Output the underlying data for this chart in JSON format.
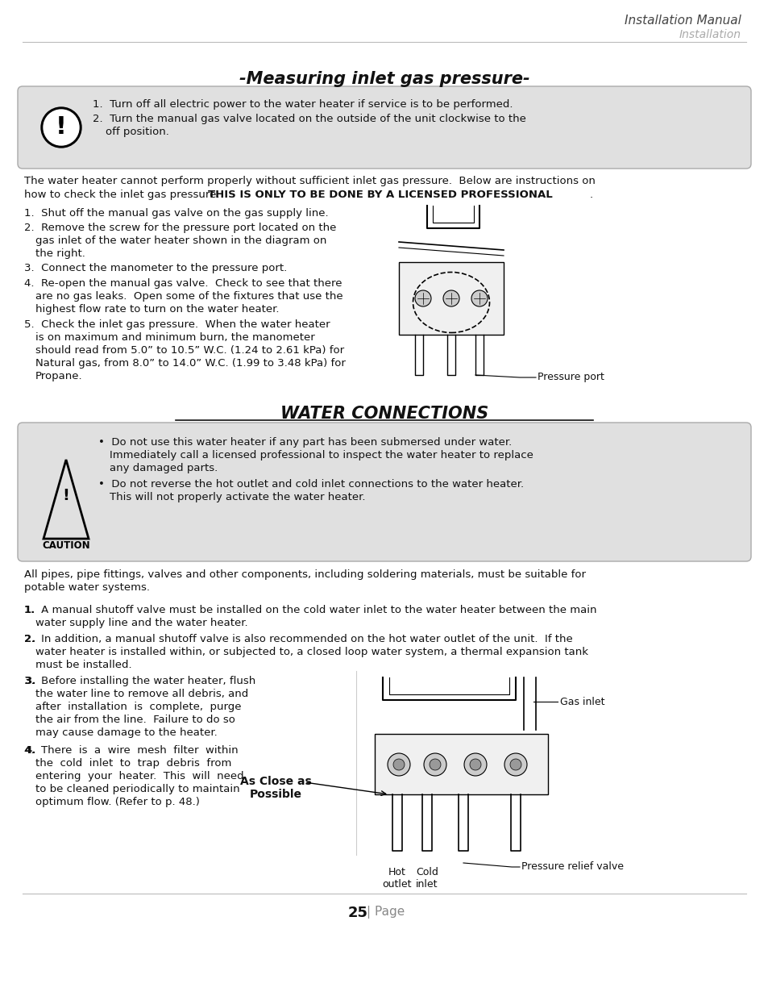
{
  "page_bg": "#ffffff",
  "header_title": "Installation Manual",
  "header_subtitle": "Installation",
  "section1_title": "-Measuring inlet gas pressure-",
  "warning_box_bg": "#e0e0e0",
  "caution_box_bg": "#e0e0e0",
  "section2_title": "WATER CONNECTIONS",
  "page_number": "25",
  "page_label": "Page",
  "text_color": "#111111",
  "header_color": "#444444",
  "subheader_color": "#aaaaaa",
  "rule_color": "#bbbbbb",
  "box_edge_color": "#aaaaaa",
  "page_num_gray": "#888888"
}
